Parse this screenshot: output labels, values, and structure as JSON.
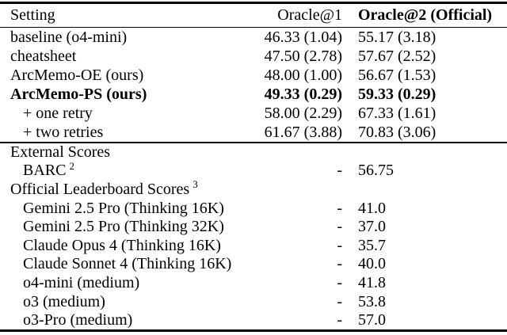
{
  "colors": {
    "text": "#000000",
    "background": "#ffffff",
    "rule": "#000000"
  },
  "table": {
    "header": {
      "setting": "Setting",
      "oracle1": "Oracle@1",
      "oracle2": "Oracle@2 (Official)"
    },
    "main_rows": [
      {
        "setting": "baseline (o4-mini)",
        "oracle1": "46.33 (1.04)",
        "oracle2": "55.17 (3.18)"
      },
      {
        "setting": "cheatsheet",
        "oracle1": "47.50 (2.78)",
        "oracle2": "57.67 (2.52)"
      },
      {
        "setting": "ArcMemo-OE (ours)",
        "oracle1": "48.00 (1.00)",
        "oracle2": "56.67 (1.53)"
      },
      {
        "setting": "ArcMemo-PS (ours)",
        "oracle1": "49.33 (0.29)",
        "oracle2": "59.33 (0.29)"
      },
      {
        "setting": "+ one retry",
        "oracle1": "58.00 (2.29)",
        "oracle2": "67.33 (1.61)"
      },
      {
        "setting": "+ two retries",
        "oracle1": "61.67 (3.88)",
        "oracle2": "70.83 (3.06)"
      }
    ],
    "external_rows": [
      {
        "setting": "External Scores"
      },
      {
        "setting": "BARC",
        "sup": "2",
        "oracle1": "-",
        "oracle2": "56.75"
      },
      {
        "setting": "Official Leaderboard Scores",
        "sup": "3"
      },
      {
        "setting": "Gemini 2.5 Pro (Thinking 16K)",
        "oracle1": "-",
        "oracle2": "41.0"
      },
      {
        "setting": "Gemini 2.5 Pro (Thinking 32K)",
        "oracle1": "-",
        "oracle2": "37.0"
      },
      {
        "setting": "Claude Opus 4 (Thinking 16K)",
        "oracle1": "-",
        "oracle2": "35.7"
      },
      {
        "setting": "Claude Sonnet 4 (Thinking 16K)",
        "oracle1": "-",
        "oracle2": "40.0"
      },
      {
        "setting": "o4-mini (medium)",
        "oracle1": "-",
        "oracle2": "41.8"
      },
      {
        "setting": "o3 (medium)",
        "oracle1": "-",
        "oracle2": "53.8"
      },
      {
        "setting": "o3-Pro (medium)",
        "oracle1": "-",
        "oracle2": "57.0"
      }
    ]
  }
}
